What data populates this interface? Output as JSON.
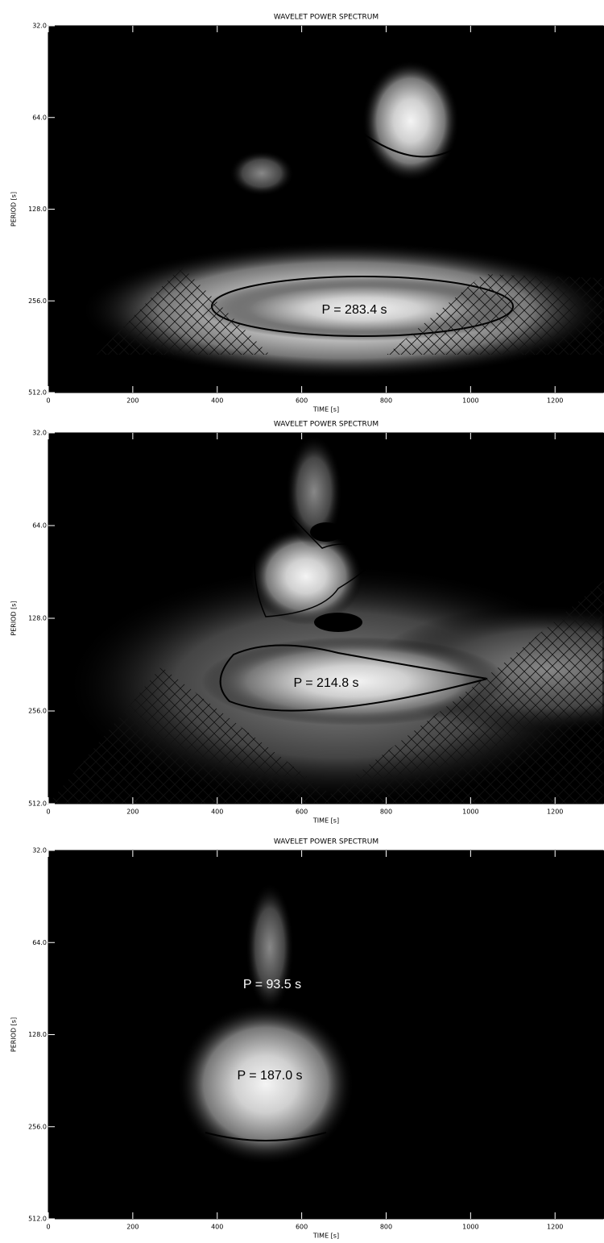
{
  "chart_data": [
    {
      "type": "contour",
      "title": "WAVELET POWER SPECTRUM",
      "xlabel": "TIME [s]",
      "ylabel": "PERIOD [s]",
      "xlim": [
        0,
        1314
      ],
      "xticks": [
        0,
        200,
        400,
        600,
        800,
        1000,
        1200
      ],
      "ylim": [
        32,
        512
      ],
      "log_y": true,
      "y_inverted": true,
      "yticks": [
        {
          "value": 32,
          "label": "32.0"
        },
        {
          "value": 64,
          "label": "64.0"
        },
        {
          "value": 128,
          "label": "128.0"
        },
        {
          "value": 256,
          "label": "256.0"
        },
        {
          "value": 512,
          "label": "512.0"
        }
      ],
      "annotations": [
        "P = 283.4 s"
      ]
    },
    {
      "type": "contour",
      "title": "WAVELET POWER SPECTRUM",
      "xlabel": "TIME [s]",
      "ylabel": "PERIOD [s]",
      "xlim": [
        0,
        1314
      ],
      "xticks": [
        0,
        200,
        400,
        600,
        800,
        1000,
        1200
      ],
      "ylim": [
        32,
        512
      ],
      "log_y": true,
      "y_inverted": true,
      "yticks": [
        {
          "value": 32,
          "label": "32.0"
        },
        {
          "value": 64,
          "label": "64.0"
        },
        {
          "value": 128,
          "label": "128.0"
        },
        {
          "value": 256,
          "label": "256.0"
        },
        {
          "value": 512,
          "label": "512.0"
        }
      ],
      "annotations": [
        "P = 214.8 s"
      ]
    },
    {
      "type": "contour",
      "title": "WAVELET POWER SPECTRUM",
      "xlabel": "TIME [s]",
      "ylabel": "PERIOD [s]",
      "xlim": [
        0,
        1314
      ],
      "xticks": [
        0,
        200,
        400,
        600,
        800,
        1000,
        1200
      ],
      "ylim": [
        32,
        512
      ],
      "log_y": true,
      "y_inverted": true,
      "yticks": [
        {
          "value": 32,
          "label": "32.0"
        },
        {
          "value": 64,
          "label": "64.0"
        },
        {
          "value": 128,
          "label": "128.0"
        },
        {
          "value": 256,
          "label": "256.0"
        },
        {
          "value": 512,
          "label": "512.0"
        }
      ],
      "annotations": [
        "P = 93.5 s",
        "P = 187.0 s"
      ]
    }
  ]
}
